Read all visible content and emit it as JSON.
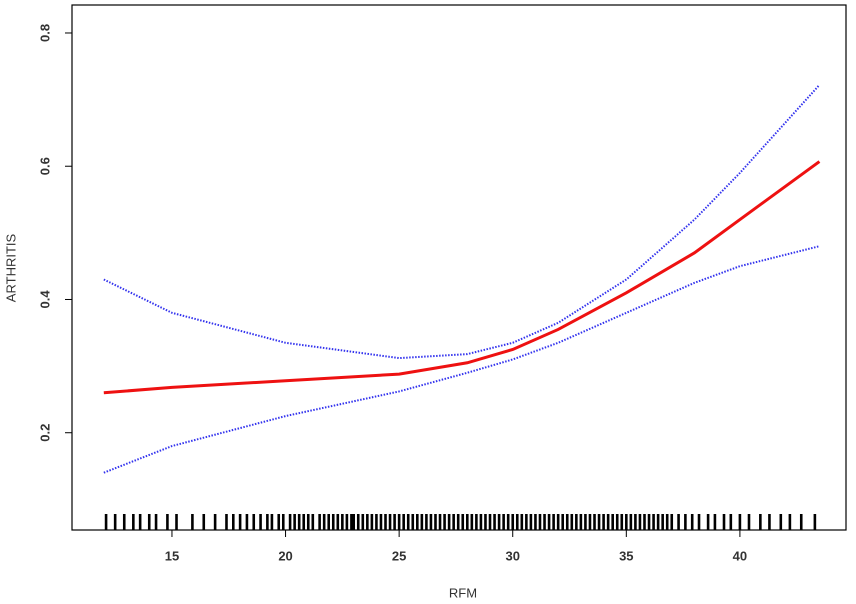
{
  "chart_data": {
    "type": "line",
    "xlabel": "RFM",
    "ylabel": "ARTHRITIS",
    "xlim": [
      10.6,
      44.67
    ],
    "ylim": [
      0.054,
      0.842
    ],
    "xticks": [
      15,
      20,
      25,
      30,
      35,
      40
    ],
    "yticks": [
      0.2,
      0.4,
      0.6,
      0.8
    ],
    "x": [
      12,
      15,
      20,
      25,
      28,
      30,
      32,
      35,
      38,
      40,
      43.5
    ],
    "series": [
      {
        "color": "#ee1111",
        "style": "solid",
        "values": [
          0.26,
          0.268,
          0.278,
          0.288,
          0.305,
          0.325,
          0.355,
          0.41,
          0.47,
          0.52,
          0.607
        ]
      },
      {
        "color": "#3333ee",
        "style": "dotted",
        "values": [
          0.43,
          0.38,
          0.335,
          0.312,
          0.318,
          0.335,
          0.365,
          0.43,
          0.52,
          0.59,
          0.722
        ]
      },
      {
        "color": "#3333ee",
        "style": "dotted",
        "values": [
          0.14,
          0.18,
          0.225,
          0.262,
          0.29,
          0.31,
          0.335,
          0.38,
          0.425,
          0.45,
          0.48
        ]
      }
    ],
    "rug": [
      12.1,
      12.5,
      12.9,
      13.3,
      13.6,
      14.0,
      14.3,
      14.8,
      15.2,
      15.9,
      16.4,
      16.9,
      17.4,
      17.7,
      18.0,
      18.3,
      18.6,
      18.9,
      19.2,
      19.4,
      19.7,
      19.9,
      20.2,
      20.4,
      20.6,
      20.8,
      21.0,
      21.2,
      21.5,
      21.7,
      21.9,
      22.1,
      22.3,
      22.5,
      22.7,
      22.9,
      23.0,
      23.2,
      23.4,
      23.6,
      23.8,
      24.0,
      24.2,
      24.4,
      24.6,
      24.8,
      25.0,
      25.2,
      25.4,
      25.6,
      25.8,
      26.0,
      26.2,
      26.4,
      26.6,
      26.8,
      27.0,
      27.2,
      27.4,
      27.6,
      27.8,
      28.0,
      28.2,
      28.4,
      28.6,
      28.8,
      29.0,
      29.2,
      29.4,
      29.6,
      29.8,
      30.0,
      30.2,
      30.4,
      30.6,
      30.8,
      31.0,
      31.2,
      31.4,
      31.6,
      31.8,
      32.0,
      32.2,
      32.4,
      32.6,
      32.8,
      33.0,
      33.2,
      33.4,
      33.6,
      33.8,
      34.0,
      34.2,
      34.4,
      34.6,
      34.8,
      35.0,
      35.2,
      35.4,
      35.6,
      35.8,
      36.0,
      36.2,
      36.4,
      36.6,
      36.8,
      37.0,
      37.3,
      37.6,
      37.9,
      38.2,
      38.6,
      38.9,
      39.3,
      39.6,
      40.0,
      40.4,
      40.9,
      41.3,
      41.8,
      42.2,
      42.7,
      43.3
    ]
  }
}
